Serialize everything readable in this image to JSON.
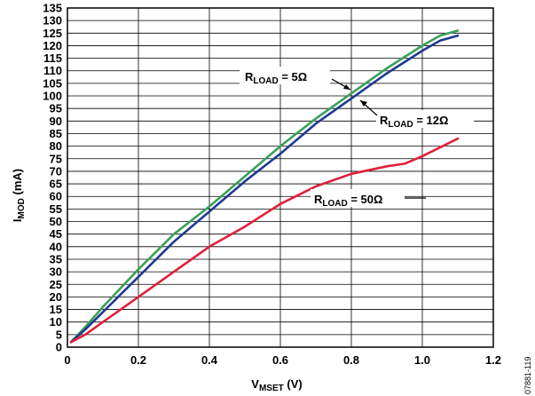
{
  "chart_data": {
    "type": "line",
    "title": "",
    "xlabel": {
      "main": "V",
      "sub": "MSET",
      "unit": " (V)"
    },
    "ylabel": {
      "main": "I",
      "sub": "MOD",
      "unit": " (mA)"
    },
    "xlim": [
      0,
      1.2
    ],
    "ylim": [
      0,
      135
    ],
    "xticks": [
      "0",
      "0.2",
      "0.4",
      "0.6",
      "0.8",
      "1.0",
      "1.2"
    ],
    "yticks": [
      0,
      5,
      10,
      15,
      20,
      25,
      30,
      35,
      40,
      45,
      50,
      55,
      60,
      65,
      70,
      75,
      80,
      85,
      90,
      95,
      100,
      105,
      110,
      115,
      120,
      125,
      130,
      135
    ],
    "grid": true,
    "series": [
      {
        "name": "R_LOAD = 5Ω",
        "color": "#3aa05a",
        "x": [
          0.01,
          0.05,
          0.1,
          0.2,
          0.3,
          0.4,
          0.5,
          0.6,
          0.7,
          0.8,
          0.9,
          1.0,
          1.05,
          1.1
        ],
        "y": [
          2,
          8,
          16,
          31,
          45,
          56,
          68,
          80,
          91,
          101,
          111,
          120,
          124,
          126
        ]
      },
      {
        "name": "R_LOAD = 12Ω",
        "color": "#1f3a93",
        "x": [
          0.01,
          0.05,
          0.1,
          0.2,
          0.3,
          0.4,
          0.5,
          0.6,
          0.7,
          0.8,
          0.9,
          1.0,
          1.05,
          1.1
        ],
        "y": [
          2,
          7,
          14,
          28,
          42,
          54,
          66,
          77,
          89,
          99,
          109,
          118,
          122,
          124
        ]
      },
      {
        "name": "R_LOAD = 50Ω",
        "color": "#e0203a",
        "x": [
          0.01,
          0.05,
          0.1,
          0.2,
          0.3,
          0.4,
          0.5,
          0.6,
          0.7,
          0.8,
          0.9,
          0.95,
          1.0,
          1.1
        ],
        "y": [
          2,
          5,
          10,
          20,
          30,
          40,
          48,
          57,
          64,
          69,
          72,
          73,
          76,
          83
        ]
      }
    ],
    "annotations": [
      {
        "main": "R",
        "sub": "LOAD",
        "rest": " = 5Ω",
        "series": 0
      },
      {
        "main": "R",
        "sub": "LOAD",
        "rest": " = 12Ω",
        "series": 1
      },
      {
        "main": "R",
        "sub": "LOAD",
        "rest": " = 50Ω",
        "series": 2
      }
    ],
    "figure_id": "07881-119"
  }
}
